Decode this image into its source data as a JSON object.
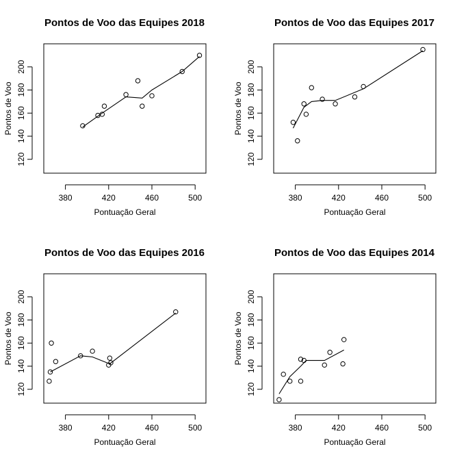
{
  "chart_data": [
    {
      "type": "scatter",
      "title": "Pontos de Voo das Equipes 2018",
      "xlabel": "Pontuação Geral",
      "ylabel": "Pontos de Voo",
      "xlim": [
        360,
        510
      ],
      "ylim": [
        108,
        220
      ],
      "x_ticks": [
        380,
        420,
        460,
        500
      ],
      "y_ticks": [
        120,
        140,
        160,
        180,
        200
      ],
      "points": [
        {
          "x": 396,
          "y": 149
        },
        {
          "x": 410,
          "y": 158
        },
        {
          "x": 414,
          "y": 159
        },
        {
          "x": 416,
          "y": 166
        },
        {
          "x": 436,
          "y": 176
        },
        {
          "x": 447,
          "y": 188
        },
        {
          "x": 451,
          "y": 166
        },
        {
          "x": 460,
          "y": 175
        },
        {
          "x": 488,
          "y": 196
        },
        {
          "x": 504,
          "y": 210
        }
      ],
      "trend": [
        {
          "x": 396,
          "y": 148
        },
        {
          "x": 414,
          "y": 160
        },
        {
          "x": 436,
          "y": 174
        },
        {
          "x": 451,
          "y": 173
        },
        {
          "x": 460,
          "y": 180
        },
        {
          "x": 488,
          "y": 196
        },
        {
          "x": 504,
          "y": 209
        }
      ]
    },
    {
      "type": "scatter",
      "title": "Pontos de Voo das Equipes 2017",
      "xlabel": "Pontuação Geral",
      "ylabel": "Pontos de Voo",
      "xlim": [
        360,
        510
      ],
      "ylim": [
        108,
        220
      ],
      "x_ticks": [
        380,
        420,
        460,
        500
      ],
      "y_ticks": [
        120,
        140,
        160,
        180,
        200
      ],
      "points": [
        {
          "x": 378,
          "y": 152
        },
        {
          "x": 382,
          "y": 136
        },
        {
          "x": 388,
          "y": 168
        },
        {
          "x": 390,
          "y": 159
        },
        {
          "x": 395,
          "y": 182
        },
        {
          "x": 405,
          "y": 172
        },
        {
          "x": 417,
          "y": 168
        },
        {
          "x": 435,
          "y": 174
        },
        {
          "x": 443,
          "y": 183
        },
        {
          "x": 498,
          "y": 215
        }
      ],
      "trend": [
        {
          "x": 378,
          "y": 147
        },
        {
          "x": 388,
          "y": 165
        },
        {
          "x": 395,
          "y": 170
        },
        {
          "x": 405,
          "y": 171
        },
        {
          "x": 417,
          "y": 171
        },
        {
          "x": 443,
          "y": 181
        },
        {
          "x": 498,
          "y": 214
        }
      ]
    },
    {
      "type": "scatter",
      "title": "Pontos de Voo das Equipes 2016",
      "xlabel": "Pontuação Geral",
      "ylabel": "Pontos de Voo",
      "xlim": [
        360,
        510
      ],
      "ylim": [
        108,
        220
      ],
      "x_ticks": [
        380,
        420,
        460,
        500
      ],
      "y_ticks": [
        120,
        140,
        160,
        180,
        200
      ],
      "points": [
        {
          "x": 365,
          "y": 127
        },
        {
          "x": 366,
          "y": 135
        },
        {
          "x": 367,
          "y": 160
        },
        {
          "x": 371,
          "y": 144
        },
        {
          "x": 394,
          "y": 149
        },
        {
          "x": 405,
          "y": 153
        },
        {
          "x": 420,
          "y": 141
        },
        {
          "x": 421,
          "y": 147
        },
        {
          "x": 422,
          "y": 143
        },
        {
          "x": 482,
          "y": 187
        }
      ],
      "trend": [
        {
          "x": 366,
          "y": 135
        },
        {
          "x": 394,
          "y": 149
        },
        {
          "x": 405,
          "y": 148
        },
        {
          "x": 421,
          "y": 142
        },
        {
          "x": 482,
          "y": 186
        }
      ]
    },
    {
      "type": "scatter",
      "title": "Pontos de Voo das Equipes 2014",
      "xlabel": "Pontuação Geral",
      "ylabel": "Pontos de Voo",
      "xlim": [
        360,
        510
      ],
      "ylim": [
        108,
        220
      ],
      "x_ticks": [
        380,
        420,
        460,
        500
      ],
      "y_ticks": [
        120,
        140,
        160,
        180,
        200
      ],
      "points": [
        {
          "x": 365,
          "y": 111
        },
        {
          "x": 369,
          "y": 133
        },
        {
          "x": 375,
          "y": 127
        },
        {
          "x": 385,
          "y": 146
        },
        {
          "x": 385,
          "y": 127
        },
        {
          "x": 388,
          "y": 145
        },
        {
          "x": 407,
          "y": 141
        },
        {
          "x": 412,
          "y": 152
        },
        {
          "x": 424,
          "y": 142
        },
        {
          "x": 425,
          "y": 163
        }
      ],
      "trend": [
        {
          "x": 365,
          "y": 116
        },
        {
          "x": 375,
          "y": 131
        },
        {
          "x": 385,
          "y": 140
        },
        {
          "x": 390,
          "y": 145
        },
        {
          "x": 407,
          "y": 145
        },
        {
          "x": 425,
          "y": 154
        }
      ]
    }
  ]
}
